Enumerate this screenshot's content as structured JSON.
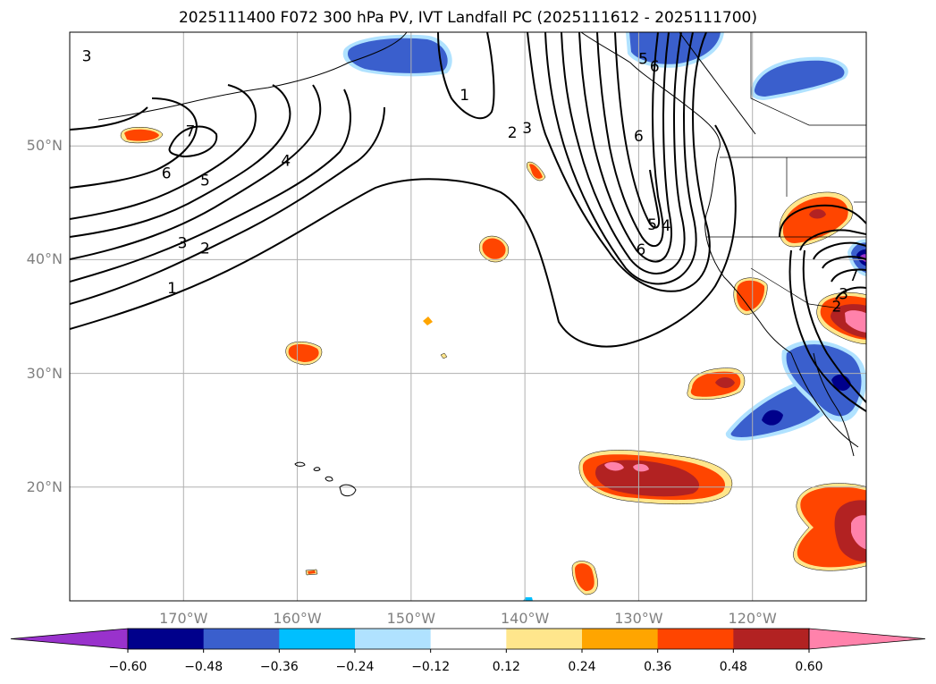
{
  "title": "2025111400 F072 300 hPa PV, IVT Landfall PC (2025111612 - 2025111700)",
  "colors": {
    "frame": "#000000",
    "grid": "#b0b0b0",
    "coast": "#000000",
    "contour": "#000000",
    "tick_label": "#808080"
  },
  "map": {
    "projection": "PlateCarree",
    "lon_range": [
      -180,
      -110
    ],
    "lat_range": [
      10,
      60
    ],
    "lon_ticks": [
      {
        "value": -170,
        "label": "170°W"
      },
      {
        "value": -160,
        "label": "160°W"
      },
      {
        "value": -150,
        "label": "150°W"
      },
      {
        "value": -140,
        "label": "140°W"
      },
      {
        "value": -130,
        "label": "130°W"
      },
      {
        "value": -120,
        "label": "120°W"
      }
    ],
    "lat_ticks": [
      {
        "value": 20,
        "label": "20°N"
      },
      {
        "value": 30,
        "label": "30°N"
      },
      {
        "value": 40,
        "label": "40°N"
      },
      {
        "value": 50,
        "label": "50°N"
      }
    ]
  },
  "pv_contours": {
    "field": "300 hPa PV",
    "labels": [
      {
        "text": "3",
        "lon": -178.5,
        "lat": 57.9
      },
      {
        "text": "7",
        "lon": -169.4,
        "lat": 51.3
      },
      {
        "text": "6",
        "lon": -171.5,
        "lat": 47.6
      },
      {
        "text": "5",
        "lon": -168.1,
        "lat": 47.0
      },
      {
        "text": "4",
        "lon": -161.0,
        "lat": 48.7
      },
      {
        "text": "3",
        "lon": -170.1,
        "lat": 41.5
      },
      {
        "text": "2",
        "lon": -168.1,
        "lat": 41.0
      },
      {
        "text": "1",
        "lon": -171.0,
        "lat": 37.5
      },
      {
        "text": "1",
        "lon": -145.3,
        "lat": 54.5
      },
      {
        "text": "2",
        "lon": -141.1,
        "lat": 51.2
      },
      {
        "text": "3",
        "lon": -139.8,
        "lat": 51.6
      },
      {
        "text": "5",
        "lon": -129.6,
        "lat": 57.7
      },
      {
        "text": "6",
        "lon": -128.6,
        "lat": 57.0
      },
      {
        "text": "6",
        "lon": -130.0,
        "lat": 50.9
      },
      {
        "text": "5",
        "lon": -128.8,
        "lat": 43.1
      },
      {
        "text": "4",
        "lon": -127.6,
        "lat": 43.0
      },
      {
        "text": "6",
        "lon": -129.8,
        "lat": 40.9
      },
      {
        "text": "7",
        "lon": -111.1,
        "lat": 38.6
      },
      {
        "text": "3",
        "lon": -112.0,
        "lat": 37.0
      },
      {
        "text": "2",
        "lon": -112.6,
        "lat": 35.9
      }
    ]
  },
  "ivt_shading": {
    "field": "IVT Landfall PC",
    "regions": [
      {
        "name": "north-pacific-east-20n",
        "sign": "positive",
        "peak": 0.6,
        "lon": -132.5,
        "lat": 21.0
      },
      {
        "name": "baja-coast-25n",
        "sign": "negative",
        "peak": -0.48,
        "lon": -118.3,
        "lat": 26.3
      },
      {
        "name": "southwest-us-32n",
        "sign": "negative",
        "peak": -0.48,
        "lon": -114.2,
        "lat": 29.8
      },
      {
        "name": "offshore-29n",
        "sign": "positive",
        "peak": 0.48,
        "lon": -122.0,
        "lat": 29.0
      },
      {
        "name": "pacific-northwest-44n",
        "sign": "positive",
        "peak": 0.36,
        "lon": -115.5,
        "lat": 44.0
      },
      {
        "name": "southern-california-36n",
        "sign": "positive",
        "peak": 0.6,
        "lon": -111.8,
        "lat": 35.0
      },
      {
        "name": "mexico-16n",
        "sign": "positive",
        "peak": 0.6,
        "lon": -113.8,
        "lat": 15.5
      },
      {
        "name": "northern-california-coast",
        "sign": "positive",
        "peak": 0.36,
        "lon": -121.9,
        "lat": 38.8
      },
      {
        "name": "hawaii-north-32n",
        "sign": "positive",
        "peak": 0.36,
        "lon": -159.0,
        "lat": 31.9
      },
      {
        "name": "central-pacific-41n",
        "sign": "positive",
        "peak": 0.36,
        "lon": -142.5,
        "lat": 41.0
      },
      {
        "name": "aleutian-51n",
        "sign": "positive",
        "peak": 0.36,
        "lon": -174.2,
        "lat": 50.6
      },
      {
        "name": "offshore-48n",
        "sign": "positive",
        "peak": 0.36,
        "lon": -139.0,
        "lat": 48.1
      },
      {
        "name": "tropical-12n",
        "sign": "positive",
        "peak": 0.36,
        "lon": -134.0,
        "lat": 12.0
      },
      {
        "name": "gulf-of-alaska-57n",
        "sign": "negative",
        "peak": -0.36,
        "lon": -151.0,
        "lat": 56.8
      },
      {
        "name": "alaska-panhandle-58n",
        "sign": "negative",
        "peak": -0.36,
        "lon": -126.0,
        "lat": 58.0
      },
      {
        "name": "canada-interior-56n",
        "sign": "negative",
        "peak": -0.36,
        "lon": -115.5,
        "lat": 55.5
      },
      {
        "name": "nevada-40n",
        "sign": "negative",
        "peak": -0.6,
        "lon": -110.5,
        "lat": 39.7
      },
      {
        "name": "small-positive-35n",
        "sign": "positive",
        "peak": 0.24,
        "lon": -148.8,
        "lat": 34.7
      },
      {
        "name": "small-positive-12n",
        "sign": "positive",
        "peak": 0.36,
        "lon": -159.1,
        "lat": 12.4
      }
    ]
  },
  "colorbar": {
    "levels": [
      -0.6,
      -0.48,
      -0.36,
      -0.24,
      -0.12,
      0.12,
      0.24,
      0.36,
      0.48,
      0.6
    ],
    "tick_labels": [
      "−0.60",
      "−0.48",
      "−0.36",
      "−0.24",
      "−0.12",
      "0.12",
      "0.24",
      "0.36",
      "0.48",
      "0.60"
    ],
    "colors": [
      "#9932cc",
      "#00008b",
      "#3a5fcd",
      "#00bfff",
      "#b0e2ff",
      "#ffffff",
      "#ffe68c",
      "#ffa500",
      "#ff4500",
      "#b22222",
      "#ff82ab"
    ],
    "extend": "both"
  }
}
